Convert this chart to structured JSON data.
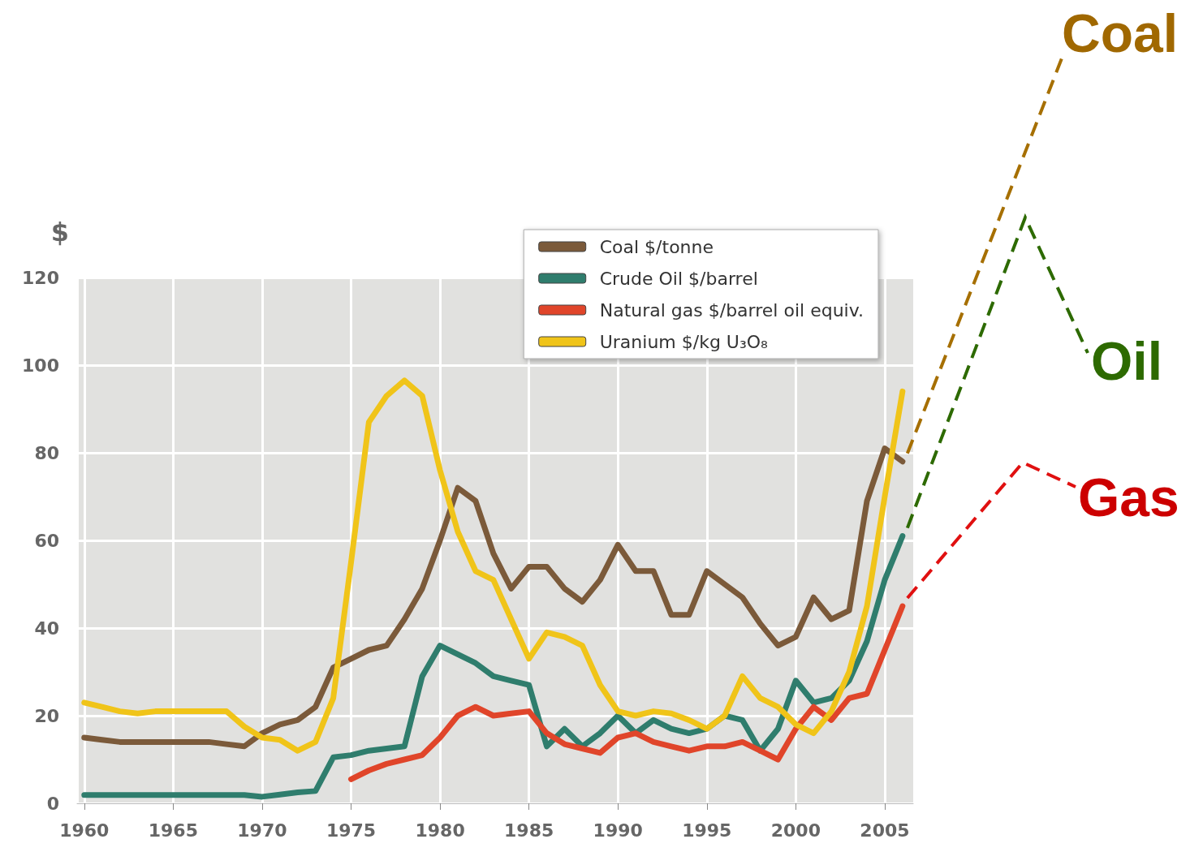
{
  "chart_data": {
    "type": "line",
    "ylabel": "$",
    "x": [
      1960,
      1961,
      1962,
      1963,
      1964,
      1965,
      1966,
      1967,
      1968,
      1969,
      1970,
      1971,
      1972,
      1973,
      1974,
      1975,
      1976,
      1977,
      1978,
      1979,
      1980,
      1981,
      1982,
      1983,
      1984,
      1985,
      1986,
      1987,
      1988,
      1989,
      1990,
      1991,
      1992,
      1993,
      1994,
      1995,
      1996,
      1997,
      1998,
      1999,
      2000,
      2001,
      2002,
      2003,
      2004,
      2005,
      2006
    ],
    "series": [
      {
        "name": "Coal $/tonne",
        "color": "#7b5a3a",
        "values": [
          15,
          14.5,
          14,
          14,
          14,
          14,
          14,
          14,
          13.5,
          13,
          16,
          18,
          19,
          22,
          31,
          33,
          35,
          36,
          42,
          49,
          60,
          72,
          69,
          57,
          49,
          54,
          54,
          49,
          46,
          51,
          59,
          53,
          53,
          43,
          43,
          53,
          50,
          47,
          41,
          36,
          38,
          47,
          42,
          44,
          69,
          81,
          78
        ]
      },
      {
        "name": "Crude Oil $/barrel",
        "color": "#2f7d6d",
        "values": [
          1.9,
          1.9,
          1.9,
          1.9,
          1.9,
          1.9,
          1.9,
          1.9,
          1.9,
          1.9,
          1.5,
          2,
          2.5,
          2.8,
          10.5,
          11,
          12,
          12.5,
          13,
          29,
          36,
          34,
          32,
          29,
          28,
          27,
          13,
          17,
          13,
          16,
          20,
          16,
          19,
          17,
          16,
          17,
          20,
          19,
          12,
          17,
          28,
          23,
          24,
          28,
          37,
          51,
          61
        ]
      },
      {
        "name": "Natural gas $/barrel oil equiv.",
        "color": "#e0452a",
        "values": [
          null,
          null,
          null,
          null,
          null,
          null,
          null,
          null,
          null,
          null,
          null,
          null,
          null,
          null,
          null,
          5.5,
          7.5,
          9,
          10,
          11,
          15,
          20,
          22,
          20,
          20.5,
          21,
          16,
          13.5,
          12.5,
          11.5,
          15,
          16,
          14,
          13,
          12,
          13,
          13,
          14,
          12,
          10,
          17,
          22,
          19,
          24,
          25,
          35,
          45
        ]
      },
      {
        "name": "Uranium $/kg U₃O₈",
        "color": "#f0c419",
        "values": [
          23,
          22,
          21,
          20.5,
          21,
          21,
          21,
          21,
          21,
          17.5,
          15,
          14.5,
          12,
          14,
          24,
          55,
          87,
          93,
          96.5,
          93,
          76,
          62,
          53,
          51,
          42,
          33,
          39,
          38,
          36,
          27,
          21,
          20,
          21,
          20.5,
          19,
          17,
          20,
          29,
          24,
          22,
          18,
          16,
          21,
          30,
          45,
          70,
          94
        ]
      }
    ],
    "xlim": [
      1959.6,
      2006.6
    ],
    "xticks": [
      1960,
      1965,
      1970,
      1975,
      1980,
      1985,
      1990,
      1995,
      2000,
      2005
    ],
    "ylim": [
      0,
      120
    ],
    "yticks": [
      0,
      20,
      40,
      60,
      80,
      100,
      120
    ],
    "grid": true,
    "legend": "top right",
    "line_style": "solid",
    "marker": "none",
    "annotations": [
      "Coal",
      "Oil",
      "Gas"
    ]
  }
}
